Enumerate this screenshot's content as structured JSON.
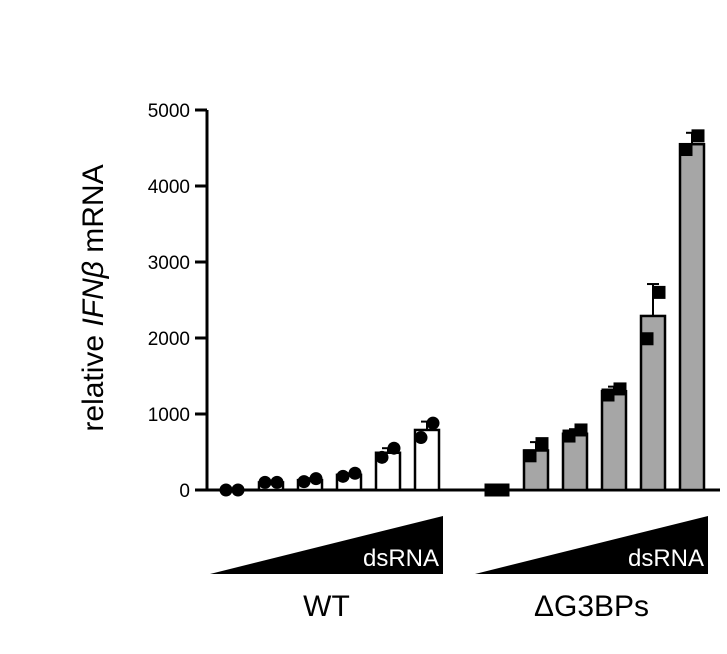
{
  "chart_data": {
    "type": "bar",
    "ylabel_parts": [
      "relative ",
      "IFNβ",
      " mRNA"
    ],
    "ylim": [
      0,
      5000
    ],
    "yticks": [
      0,
      1000,
      2000,
      3000,
      4000,
      5000
    ],
    "grid": false,
    "treatment_label": "dsRNA",
    "groups": [
      {
        "name": "WT",
        "fill": "#ffffff",
        "marker": "circle",
        "bars": [
          {
            "mean": 0,
            "error": 0,
            "points": [
              0,
              0
            ]
          },
          {
            "mean": 100,
            "error": 10,
            "points": [
              100,
              100
            ]
          },
          {
            "mean": 130,
            "error": 25,
            "points": [
              110,
              150
            ]
          },
          {
            "mean": 200,
            "error": 20,
            "points": [
              180,
              220
            ]
          },
          {
            "mean": 490,
            "error": 60,
            "points": [
              430,
              550
            ]
          },
          {
            "mean": 790,
            "error": 110,
            "points": [
              690,
              880
            ]
          }
        ]
      },
      {
        "name": "ΔG3BPs",
        "fill": "#a6a6a6",
        "marker": "square",
        "bars": [
          {
            "mean": 0,
            "error": 0,
            "points": [
              0,
              0
            ]
          },
          {
            "mean": 520,
            "error": 110,
            "points": [
              450,
              610
            ]
          },
          {
            "mean": 740,
            "error": 60,
            "points": [
              710,
              790
            ]
          },
          {
            "mean": 1300,
            "error": 60,
            "points": [
              1250,
              1330
            ]
          },
          {
            "mean": 2290,
            "error": 420,
            "points": [
              1990,
              2600
            ]
          },
          {
            "mean": 4550,
            "error": 150,
            "points": [
              4480,
              4660
            ]
          }
        ]
      }
    ]
  }
}
